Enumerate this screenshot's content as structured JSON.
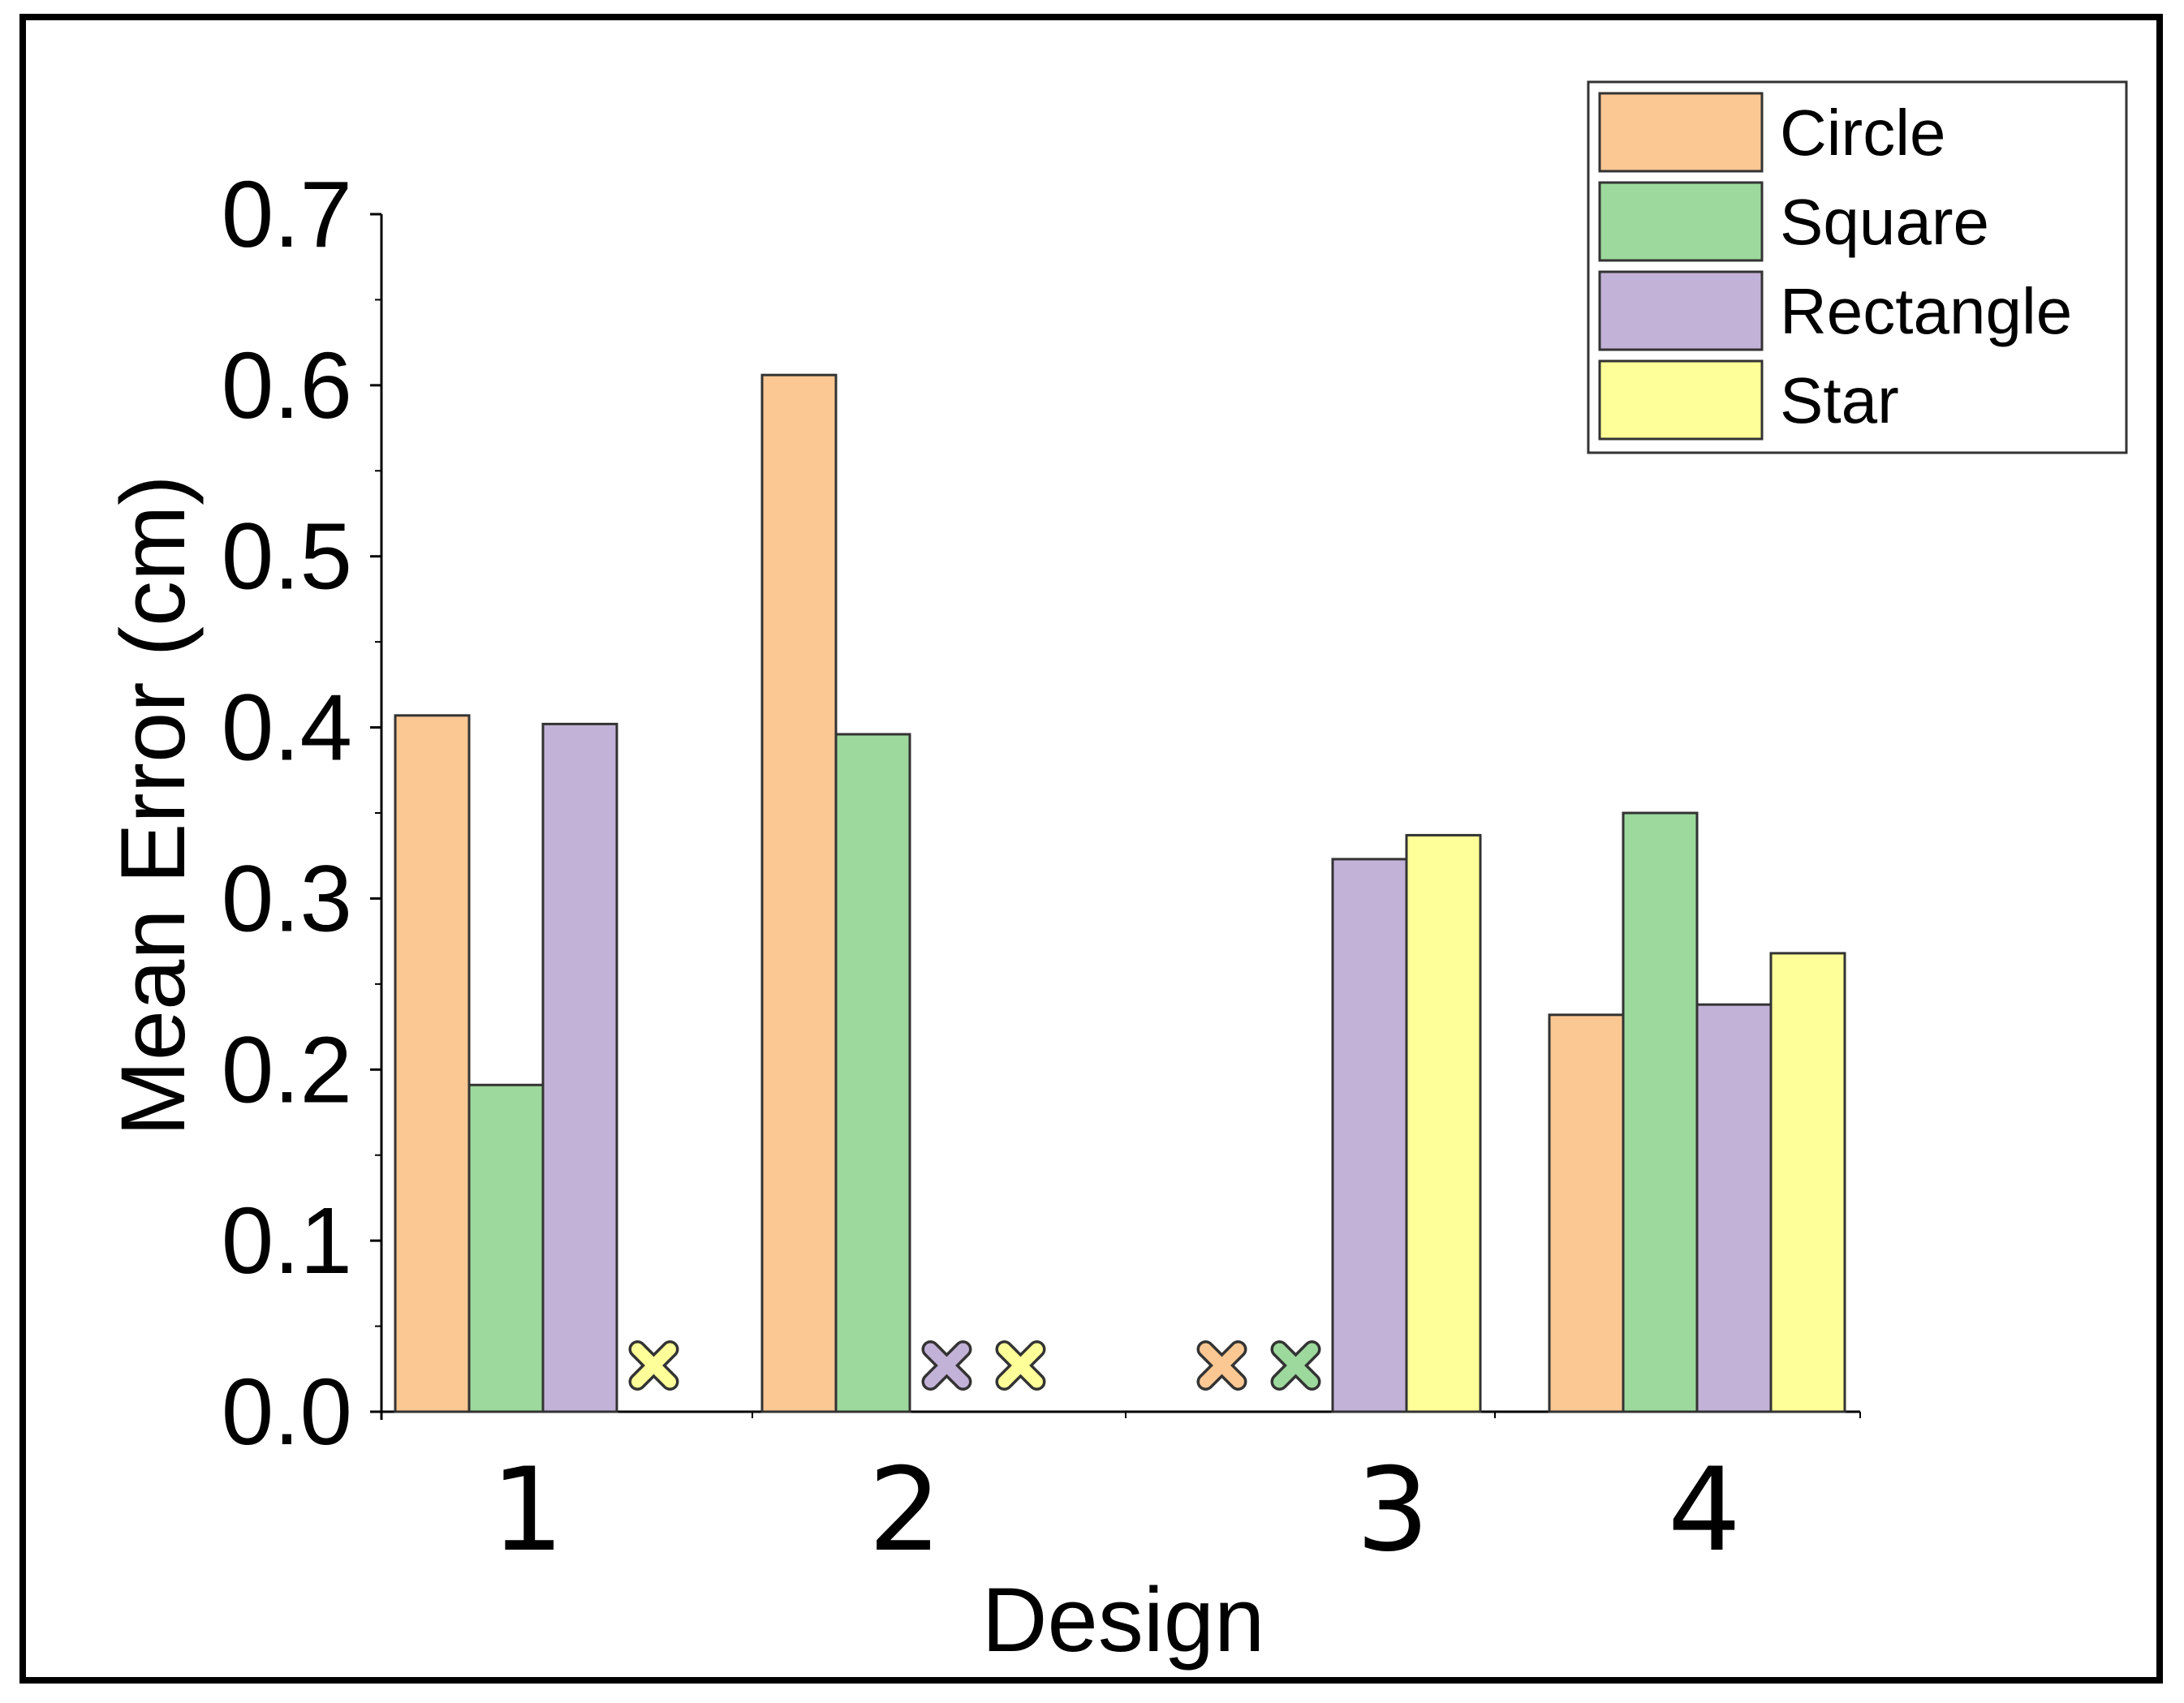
{
  "chart_data": {
    "type": "bar",
    "title": "",
    "xlabel": "Design",
    "ylabel": "Mean Error (cm)",
    "ylim": [
      0,
      0.7
    ],
    "yticks": [
      "0.0",
      "0.1",
      "0.2",
      "0.3",
      "0.4",
      "0.5",
      "0.6",
      "0.7"
    ],
    "categories": [
      "1",
      "2",
      "3",
      "4"
    ],
    "legend_position": "top-right",
    "grid": false,
    "series": [
      {
        "name": "Circle",
        "color": "#fbc793",
        "values": [
          0.407,
          0.606,
          null,
          0.232
        ]
      },
      {
        "name": "Square",
        "color": "#9dd99d",
        "values": [
          0.191,
          0.396,
          null,
          0.35
        ]
      },
      {
        "name": "Rectangle",
        "color": "#c3b2d8",
        "values": [
          0.402,
          null,
          0.323,
          0.238
        ]
      },
      {
        "name": "Star",
        "color": "#ffff99",
        "values": [
          null,
          null,
          0.337,
          0.268
        ]
      }
    ],
    "missing_marker": "x-icon"
  }
}
